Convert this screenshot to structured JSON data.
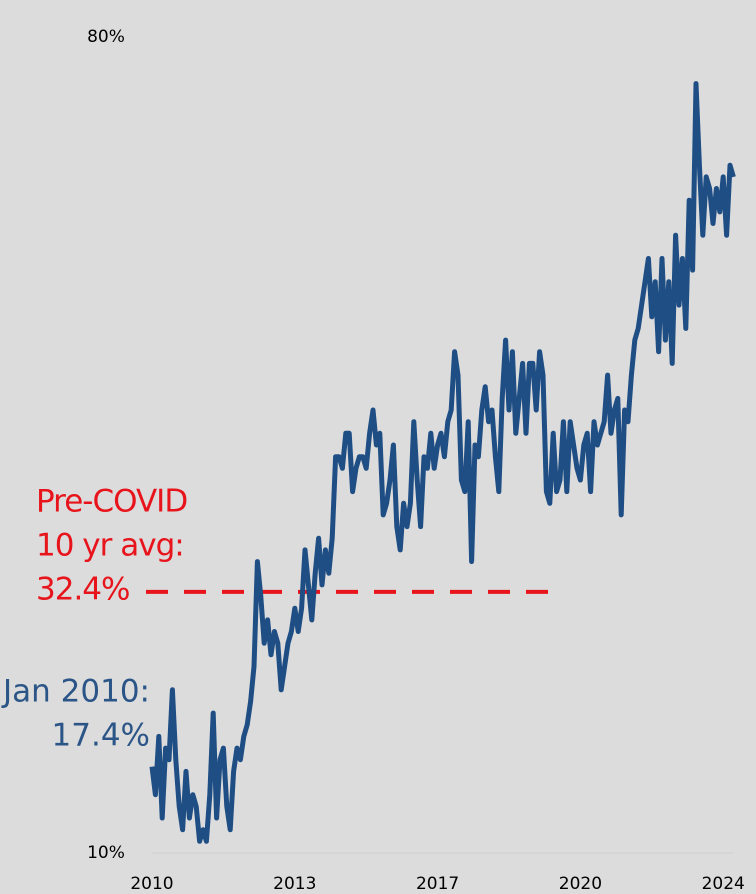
{
  "chart_data": {
    "type": "line",
    "categories": [
      "2010",
      null,
      null,
      null,
      null,
      null,
      null,
      null,
      null,
      null,
      null,
      null,
      null,
      null,
      null,
      null,
      null,
      null,
      null,
      null,
      null,
      null,
      null,
      null,
      null,
      null,
      null,
      null,
      null,
      null,
      null,
      null,
      null,
      null,
      null,
      null,
      null,
      null,
      null,
      null,
      null,
      null,
      "2013",
      null,
      null,
      null,
      null,
      null,
      null,
      null,
      null,
      null,
      null,
      null,
      null,
      null,
      null,
      null,
      null,
      null,
      null,
      null,
      null,
      null,
      null,
      null,
      null,
      null,
      null,
      null,
      null,
      null,
      null,
      null,
      null,
      null,
      null,
      null,
      null,
      null,
      null,
      null,
      null,
      null,
      "2017",
      null,
      null,
      null,
      null,
      null,
      null,
      null,
      null,
      null,
      null,
      null,
      null,
      null,
      null,
      null,
      null,
      null,
      null,
      null,
      null,
      null,
      null,
      null,
      null,
      null,
      null,
      null,
      null,
      null,
      null,
      null,
      null,
      null,
      null,
      null,
      null,
      null,
      null,
      null,
      null,
      null,
      "2020",
      null,
      null,
      null,
      null,
      null,
      null,
      null,
      null,
      null,
      null,
      null,
      null,
      null,
      null,
      null,
      null,
      null,
      null,
      null,
      null,
      null,
      null,
      null,
      null,
      null,
      null,
      null,
      null,
      null,
      null,
      null,
      null,
      null,
      null,
      null,
      null,
      null,
      null,
      null,
      null,
      null,
      "2024",
      null,
      null,
      null
    ],
    "series": [
      {
        "color": "#1f4e85",
        "values": [
          17.4,
          15,
          20,
          13,
          19,
          18,
          24,
          18,
          14,
          12,
          17,
          13,
          15,
          14,
          11,
          12,
          11,
          15,
          22,
          13,
          18,
          19,
          14,
          12,
          17,
          19,
          18,
          20,
          21,
          23,
          26,
          35,
          32,
          28,
          30,
          27,
          29,
          28,
          24,
          26,
          28,
          29,
          31,
          29,
          31,
          36,
          33,
          30,
          34,
          37,
          33,
          36,
          34,
          37,
          44,
          44,
          43,
          46,
          46,
          41,
          43,
          44,
          44,
          43,
          46,
          48,
          45,
          46,
          39,
          40,
          42,
          45,
          38,
          36,
          40,
          38,
          40,
          47,
          42,
          38,
          44,
          43,
          46,
          43,
          45,
          46,
          44,
          47,
          48,
          53,
          51,
          42,
          41,
          47,
          35,
          45,
          44,
          48,
          50,
          47,
          48,
          44,
          41,
          49,
          54,
          48,
          53,
          46,
          49,
          52,
          46,
          52,
          52,
          48,
          53,
          51,
          41,
          40,
          46,
          41,
          42,
          47,
          41,
          47,
          45,
          43,
          42,
          45,
          46,
          41,
          47,
          45,
          46,
          47,
          51,
          46,
          48,
          49,
          39,
          48,
          47,
          51,
          54,
          55,
          57,
          59,
          61,
          56,
          59,
          53,
          61,
          54,
          59,
          52,
          63,
          57,
          61,
          55,
          66,
          60,
          76,
          69,
          63,
          68,
          67,
          64,
          67,
          65,
          68,
          63,
          69,
          68
        ]
      }
    ],
    "ylim": [
      10,
      80
    ],
    "yticks": [
      {
        "value": 10,
        "label": "10%"
      },
      {
        "value": 80,
        "label": "80%"
      }
    ],
    "annotations": [
      {
        "lines": [
          "Pre-COVID",
          "10 yr avg:",
          "32.4%"
        ],
        "value": 32.4,
        "color": "#e8141c"
      },
      {
        "lines": [
          "Jan 2010:",
          "17.4%"
        ],
        "color": "#2b5587"
      }
    ]
  }
}
